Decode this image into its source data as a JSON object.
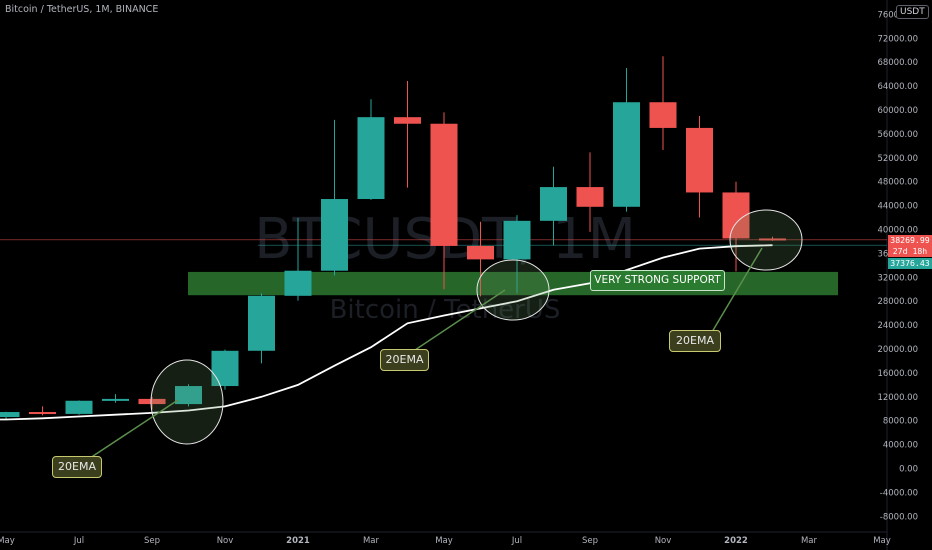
{
  "symbol_header": "Bitcoin / TetherUS, 1M, BINANCE",
  "currency": "USDT",
  "watermark": {
    "ticker": "BTCUSDT, 1M",
    "name": "Bitcoin / TetherUS"
  },
  "price_tags": {
    "last_price": "38269.99",
    "countdown": "27d 18h",
    "ema_value": "37376.43"
  },
  "annotations": {
    "support_label": "VERY STRONG SUPPORT",
    "ema_callout_1": "20EMA",
    "ema_callout_2": "20EMA",
    "ema_callout_3": "20EMA"
  },
  "colors": {
    "up": "#26a69a",
    "down": "#ef5350",
    "ema_line": "#ffffff",
    "support_zone": "#2e7d32",
    "background": "#000000",
    "axis_text": "#b2b5be"
  },
  "chart_data": {
    "type": "candlestick",
    "title": "Bitcoin / TetherUS, 1M, BINANCE",
    "interval": "1M",
    "x_tick_labels": [
      "May",
      "Jul",
      "Sep",
      "Nov",
      "2021",
      "Mar",
      "May",
      "Jul",
      "Sep",
      "Nov",
      "2022",
      "Mar",
      "May"
    ],
    "y_tick_labels": [
      "-8000.00",
      "-4000.00",
      "0.00",
      "4000.00",
      "8000.00",
      "12000.00",
      "16000.00",
      "20000.00",
      "24000.00",
      "28000.00",
      "32000.00",
      "36000.00",
      "40000.00",
      "44000.00",
      "48000.00",
      "52000.00",
      "56000.00",
      "60000.00",
      "64000.00",
      "68000.00",
      "72000.00",
      "76000.00"
    ],
    "ylim": [
      -10000,
      78000
    ],
    "candles": [
      {
        "month": "2020-05",
        "open": 8620,
        "high": 9500,
        "low": 8100,
        "close": 9450
      },
      {
        "month": "2020-06",
        "open": 9450,
        "high": 10400,
        "low": 8900,
        "close": 9140
      },
      {
        "month": "2020-07",
        "open": 9140,
        "high": 11400,
        "low": 9000,
        "close": 11340
      },
      {
        "month": "2020-08",
        "open": 11340,
        "high": 12450,
        "low": 11000,
        "close": 11650
      },
      {
        "month": "2020-09",
        "open": 11650,
        "high": 12000,
        "low": 9900,
        "close": 10780
      },
      {
        "month": "2020-10",
        "open": 10780,
        "high": 14100,
        "low": 10400,
        "close": 13800
      },
      {
        "month": "2020-11",
        "open": 13800,
        "high": 19900,
        "low": 13200,
        "close": 19700
      },
      {
        "month": "2020-12",
        "open": 19700,
        "high": 29300,
        "low": 17600,
        "close": 28900
      },
      {
        "month": "2021-01",
        "open": 28900,
        "high": 41950,
        "low": 28100,
        "close": 33100
      },
      {
        "month": "2021-02",
        "open": 33100,
        "high": 58350,
        "low": 32300,
        "close": 45100
      },
      {
        "month": "2021-03",
        "open": 45100,
        "high": 61800,
        "low": 44950,
        "close": 58800
      },
      {
        "month": "2021-04",
        "open": 58800,
        "high": 64850,
        "low": 47000,
        "close": 57700
      },
      {
        "month": "2021-05",
        "open": 57700,
        "high": 59600,
        "low": 30000,
        "close": 37250
      },
      {
        "month": "2021-06",
        "open": 37250,
        "high": 41300,
        "low": 28800,
        "close": 35000
      },
      {
        "month": "2021-07",
        "open": 35000,
        "high": 42400,
        "low": 29300,
        "close": 41450
      },
      {
        "month": "2021-08",
        "open": 41450,
        "high": 50500,
        "low": 37300,
        "close": 47100
      },
      {
        "month": "2021-09",
        "open": 47100,
        "high": 52900,
        "low": 39600,
        "close": 43800
      },
      {
        "month": "2021-10",
        "open": 43800,
        "high": 67000,
        "low": 43000,
        "close": 61300
      },
      {
        "month": "2021-11",
        "open": 61300,
        "high": 69000,
        "low": 53300,
        "close": 57000
      },
      {
        "month": "2021-12",
        "open": 57000,
        "high": 59000,
        "low": 42000,
        "close": 46200
      },
      {
        "month": "2022-01",
        "open": 46200,
        "high": 48000,
        "low": 33000,
        "close": 38500
      },
      {
        "month": "2022-02",
        "open": 38500,
        "high": 38800,
        "low": 38100,
        "close": 38270
      }
    ],
    "ema20": {
      "name": "20EMA",
      "points": [
        {
          "month": "2020-04",
          "value": 8200
        },
        {
          "month": "2020-05",
          "value": 8200
        },
        {
          "month": "2020-06",
          "value": 8400
        },
        {
          "month": "2020-07",
          "value": 8700
        },
        {
          "month": "2020-08",
          "value": 9000
        },
        {
          "month": "2020-09",
          "value": 9300
        },
        {
          "month": "2020-10",
          "value": 9700
        },
        {
          "month": "2020-11",
          "value": 10400
        },
        {
          "month": "2020-12",
          "value": 12000
        },
        {
          "month": "2021-01",
          "value": 14000
        },
        {
          "month": "2021-02",
          "value": 17200
        },
        {
          "month": "2021-03",
          "value": 20300
        },
        {
          "month": "2021-04",
          "value": 24300
        },
        {
          "month": "2021-05",
          "value": 25600
        },
        {
          "month": "2021-06",
          "value": 26800
        },
        {
          "month": "2021-07",
          "value": 28000
        },
        {
          "month": "2021-08",
          "value": 29900
        },
        {
          "month": "2021-09",
          "value": 31000
        },
        {
          "month": "2021-10",
          "value": 33200
        },
        {
          "month": "2021-11",
          "value": 35300
        },
        {
          "month": "2021-12",
          "value": 36800
        },
        {
          "month": "2022-01",
          "value": 37200
        },
        {
          "month": "2022-02",
          "value": 37376
        }
      ]
    },
    "support_zone": {
      "low": 29000,
      "high": 32900,
      "label": "VERY STRONG SUPPORT"
    },
    "last_price": 38269.99,
    "ema_value": 37376.43
  }
}
